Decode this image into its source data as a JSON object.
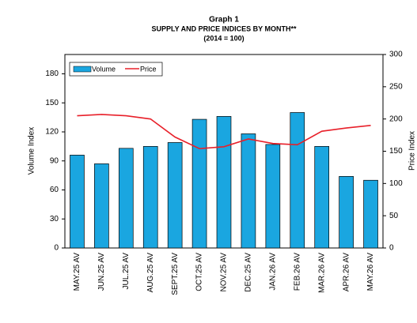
{
  "chart_data": {
    "type": "bar-line",
    "title": "Graph 1",
    "subtitle": "SUPPLY AND PRICE INDICES BY MONTH**",
    "subtitle2": "(2014 = 100)",
    "y_label": "Volume Index",
    "y2_label": "Price Index",
    "categories": [
      "MAY.25 AV",
      "JUN.25 AV",
      "JUL.25 AV",
      "AUG.25 AV",
      "SEPT.25 AV",
      "OCT.25 AV",
      "NOV.25 AV",
      "DEC.25 AV",
      "JAN.26 AV",
      "FEB.26 AV",
      "MAR.26 AV",
      "APR.26 AV",
      "MAY.26 AV"
    ],
    "series": [
      {
        "name": "Volume",
        "color": "#1aa6e0",
        "type": "bar",
        "values": [
          96,
          87,
          103,
          105,
          109,
          133,
          136,
          118,
          107,
          140,
          105,
          74,
          70
        ]
      },
      {
        "name": "Price",
        "color": "#e8202a",
        "type": "line",
        "axis": "y2",
        "values": [
          205,
          207,
          205,
          200,
          172,
          154,
          157,
          169,
          162,
          160,
          181,
          186,
          190
        ]
      }
    ],
    "ylim": [
      0,
      200
    ],
    "yticks": [
      0,
      30,
      60,
      90,
      120,
      150,
      180
    ],
    "y2lim": [
      0,
      300
    ],
    "y2ticks": [
      0,
      50,
      100,
      150,
      200,
      250,
      300
    ]
  }
}
